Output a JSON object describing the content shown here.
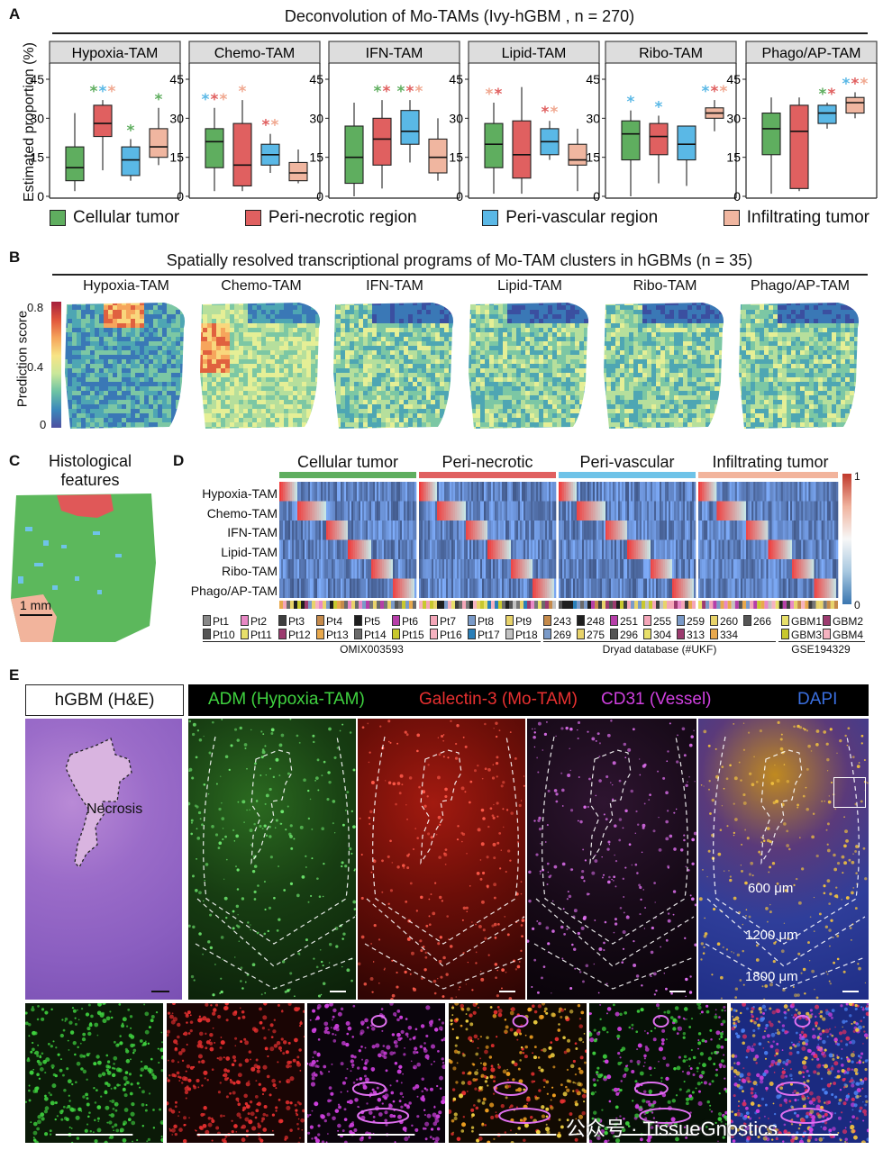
{
  "panelA": {
    "letter": "A",
    "title": "Deconvolution of Mo-TAMs (Ivy-hGBM , n = 270)",
    "ylabel": "Estimated proportion (%)",
    "yticks": [
      "45",
      "30",
      "15",
      "0"
    ],
    "legend": [
      {
        "label": "Cellular tumor",
        "color": "#5fae5f"
      },
      {
        "label": "Peri-necrotic region",
        "color": "#e06060"
      },
      {
        "label": "Peri-vascular region",
        "color": "#5ab8e6"
      },
      {
        "label": "Infiltrating tumor",
        "color": "#f0b6a0"
      }
    ],
    "subplots": [
      "Hypoxia-TAM",
      "Chemo-TAM",
      "IFN-TAM",
      "Lipid-TAM",
      "Ribo-TAM",
      "Phago/AP-TAM"
    ]
  },
  "chart_data": [
    {
      "type": "box",
      "title": "Hypoxia-TAM",
      "ylim": [
        0,
        45
      ],
      "groups": [
        "Cellular tumor",
        "Peri-necrotic region",
        "Peri-vascular region",
        "Infiltrating tumor"
      ],
      "min": [
        2,
        10,
        6,
        12
      ],
      "q1": [
        6,
        23,
        8,
        15
      ],
      "median": [
        11,
        28,
        14,
        19
      ],
      "q3": [
        19,
        35,
        19,
        26
      ],
      "max": [
        32,
        37,
        22,
        34
      ]
    },
    {
      "type": "box",
      "title": "Chemo-TAM",
      "ylim": [
        0,
        45
      ],
      "groups": [
        "Cellular tumor",
        "Peri-necrotic region",
        "Peri-vascular region",
        "Infiltrating tumor"
      ],
      "min": [
        2,
        2,
        9,
        5
      ],
      "q1": [
        11,
        4,
        12,
        6
      ],
      "median": [
        21,
        12,
        16,
        9
      ],
      "q3": [
        26,
        28,
        20,
        13
      ],
      "max": [
        34,
        37,
        24,
        18
      ]
    },
    {
      "type": "box",
      "title": "IFN-TAM",
      "ylim": [
        0,
        45
      ],
      "groups": [
        "Cellular tumor",
        "Peri-necrotic region",
        "Peri-vascular region",
        "Infiltrating tumor"
      ],
      "min": [
        0,
        3,
        13,
        6
      ],
      "q1": [
        5,
        12,
        20,
        9
      ],
      "median": [
        15,
        22,
        25,
        15
      ],
      "q3": [
        27,
        30,
        33,
        22
      ],
      "max": [
        36,
        37,
        37,
        30
      ]
    },
    {
      "type": "box",
      "title": "Lipid-TAM",
      "ylim": [
        0,
        45
      ],
      "groups": [
        "Cellular tumor",
        "Peri-necrotic region",
        "Peri-vascular region",
        "Infiltrating tumor"
      ],
      "min": [
        1,
        1,
        14,
        2
      ],
      "q1": [
        11,
        7,
        16,
        12
      ],
      "median": [
        20,
        16,
        21,
        14
      ],
      "q3": [
        28,
        29,
        26,
        20
      ],
      "max": [
        36,
        42,
        29,
        26
      ]
    },
    {
      "type": "box",
      "title": "Ribo-TAM",
      "ylim": [
        0,
        45
      ],
      "groups": [
        "Cellular tumor",
        "Peri-necrotic region",
        "Peri-vascular region",
        "Infiltrating tumor"
      ],
      "min": [
        0,
        5,
        4,
        25
      ],
      "q1": [
        14,
        16,
        14,
        30
      ],
      "median": [
        24,
        23,
        20,
        32
      ],
      "q3": [
        29,
        28,
        27,
        34
      ],
      "max": [
        33,
        31,
        27,
        37
      ]
    },
    {
      "type": "box",
      "title": "Phago/AP-TAM",
      "ylim": [
        0,
        45
      ],
      "groups": [
        "Cellular tumor",
        "Peri-necrotic region",
        "Peri-vascular region",
        "Infiltrating tumor"
      ],
      "min": [
        1,
        2,
        26,
        30
      ],
      "q1": [
        16,
        3,
        28,
        32
      ],
      "median": [
        26,
        25,
        32,
        36
      ],
      "q3": [
        32,
        35,
        35,
        38
      ],
      "max": [
        38,
        38,
        36,
        40
      ]
    }
  ],
  "panelB": {
    "letter": "B",
    "title": "Spatially resolved transcriptional programs of Mo-TAM clusters in hGBMs (n = 35)",
    "ylabel": "Prediction score",
    "ticks": [
      "0.8",
      "0.4",
      "0"
    ],
    "maps": [
      "Hypoxia-TAM",
      "Chemo-TAM",
      "IFN-TAM",
      "Lipid-TAM",
      "Ribo-TAM",
      "Phago/AP-TAM"
    ]
  },
  "panelC": {
    "letter": "C",
    "title_line1": "Histological",
    "title_line2": "features",
    "scalebar": "1 mm"
  },
  "panelD": {
    "letter": "D",
    "regions": [
      "Cellular tumor",
      "Peri-necrotic",
      "Peri-vascular",
      "Infiltrating tumor"
    ],
    "rows": [
      "Hypoxia-TAM",
      "Chemo-TAM",
      "IFN-TAM",
      "Lipid-TAM",
      "Ribo-TAM",
      "Phago/AP-TAM"
    ],
    "colorbar": [
      "1",
      "0"
    ],
    "omix": {
      "row1": [
        "Pt1",
        "Pt2",
        "Pt3",
        "Pt4",
        "Pt5",
        "Pt6",
        "Pt7",
        "Pt8",
        "Pt9"
      ],
      "row2": [
        "Pt10",
        "Pt11",
        "Pt12",
        "Pt13",
        "Pt14",
        "Pt15",
        "Pt16",
        "Pt17",
        "Pt18"
      ],
      "source": "OMIX003593"
    },
    "dryad": {
      "row1": [
        "243",
        "248",
        "251",
        "255",
        "259",
        "260",
        "266"
      ],
      "row2": [
        "269",
        "275",
        "296",
        "304",
        "313",
        "334"
      ],
      "source": "Dryad database (#UKF)"
    },
    "gse": {
      "row1": [
        "GBM1",
        "GBM2"
      ],
      "row2": [
        "GBM3",
        "GBM4"
      ],
      "source": "GSE194329"
    }
  },
  "panelE": {
    "letter": "E",
    "he_label": "hGBM (H&E)",
    "necrosis": "Necrosis",
    "channels": [
      {
        "label": "ADM (Hypoxia-TAM)",
        "color": "#3fd23f"
      },
      {
        "label": "Galectin-3 (Mo-TAM)",
        "color": "#e83030"
      },
      {
        "label": "CD31 (Vessel)",
        "color": "#d040e0"
      },
      {
        "label": "DAPI",
        "color": "#3a6fe0"
      }
    ],
    "distances": [
      "600 μm",
      "1200 μm",
      "1800 μm"
    ]
  },
  "watermark": "公众号 · TissueGnostics"
}
